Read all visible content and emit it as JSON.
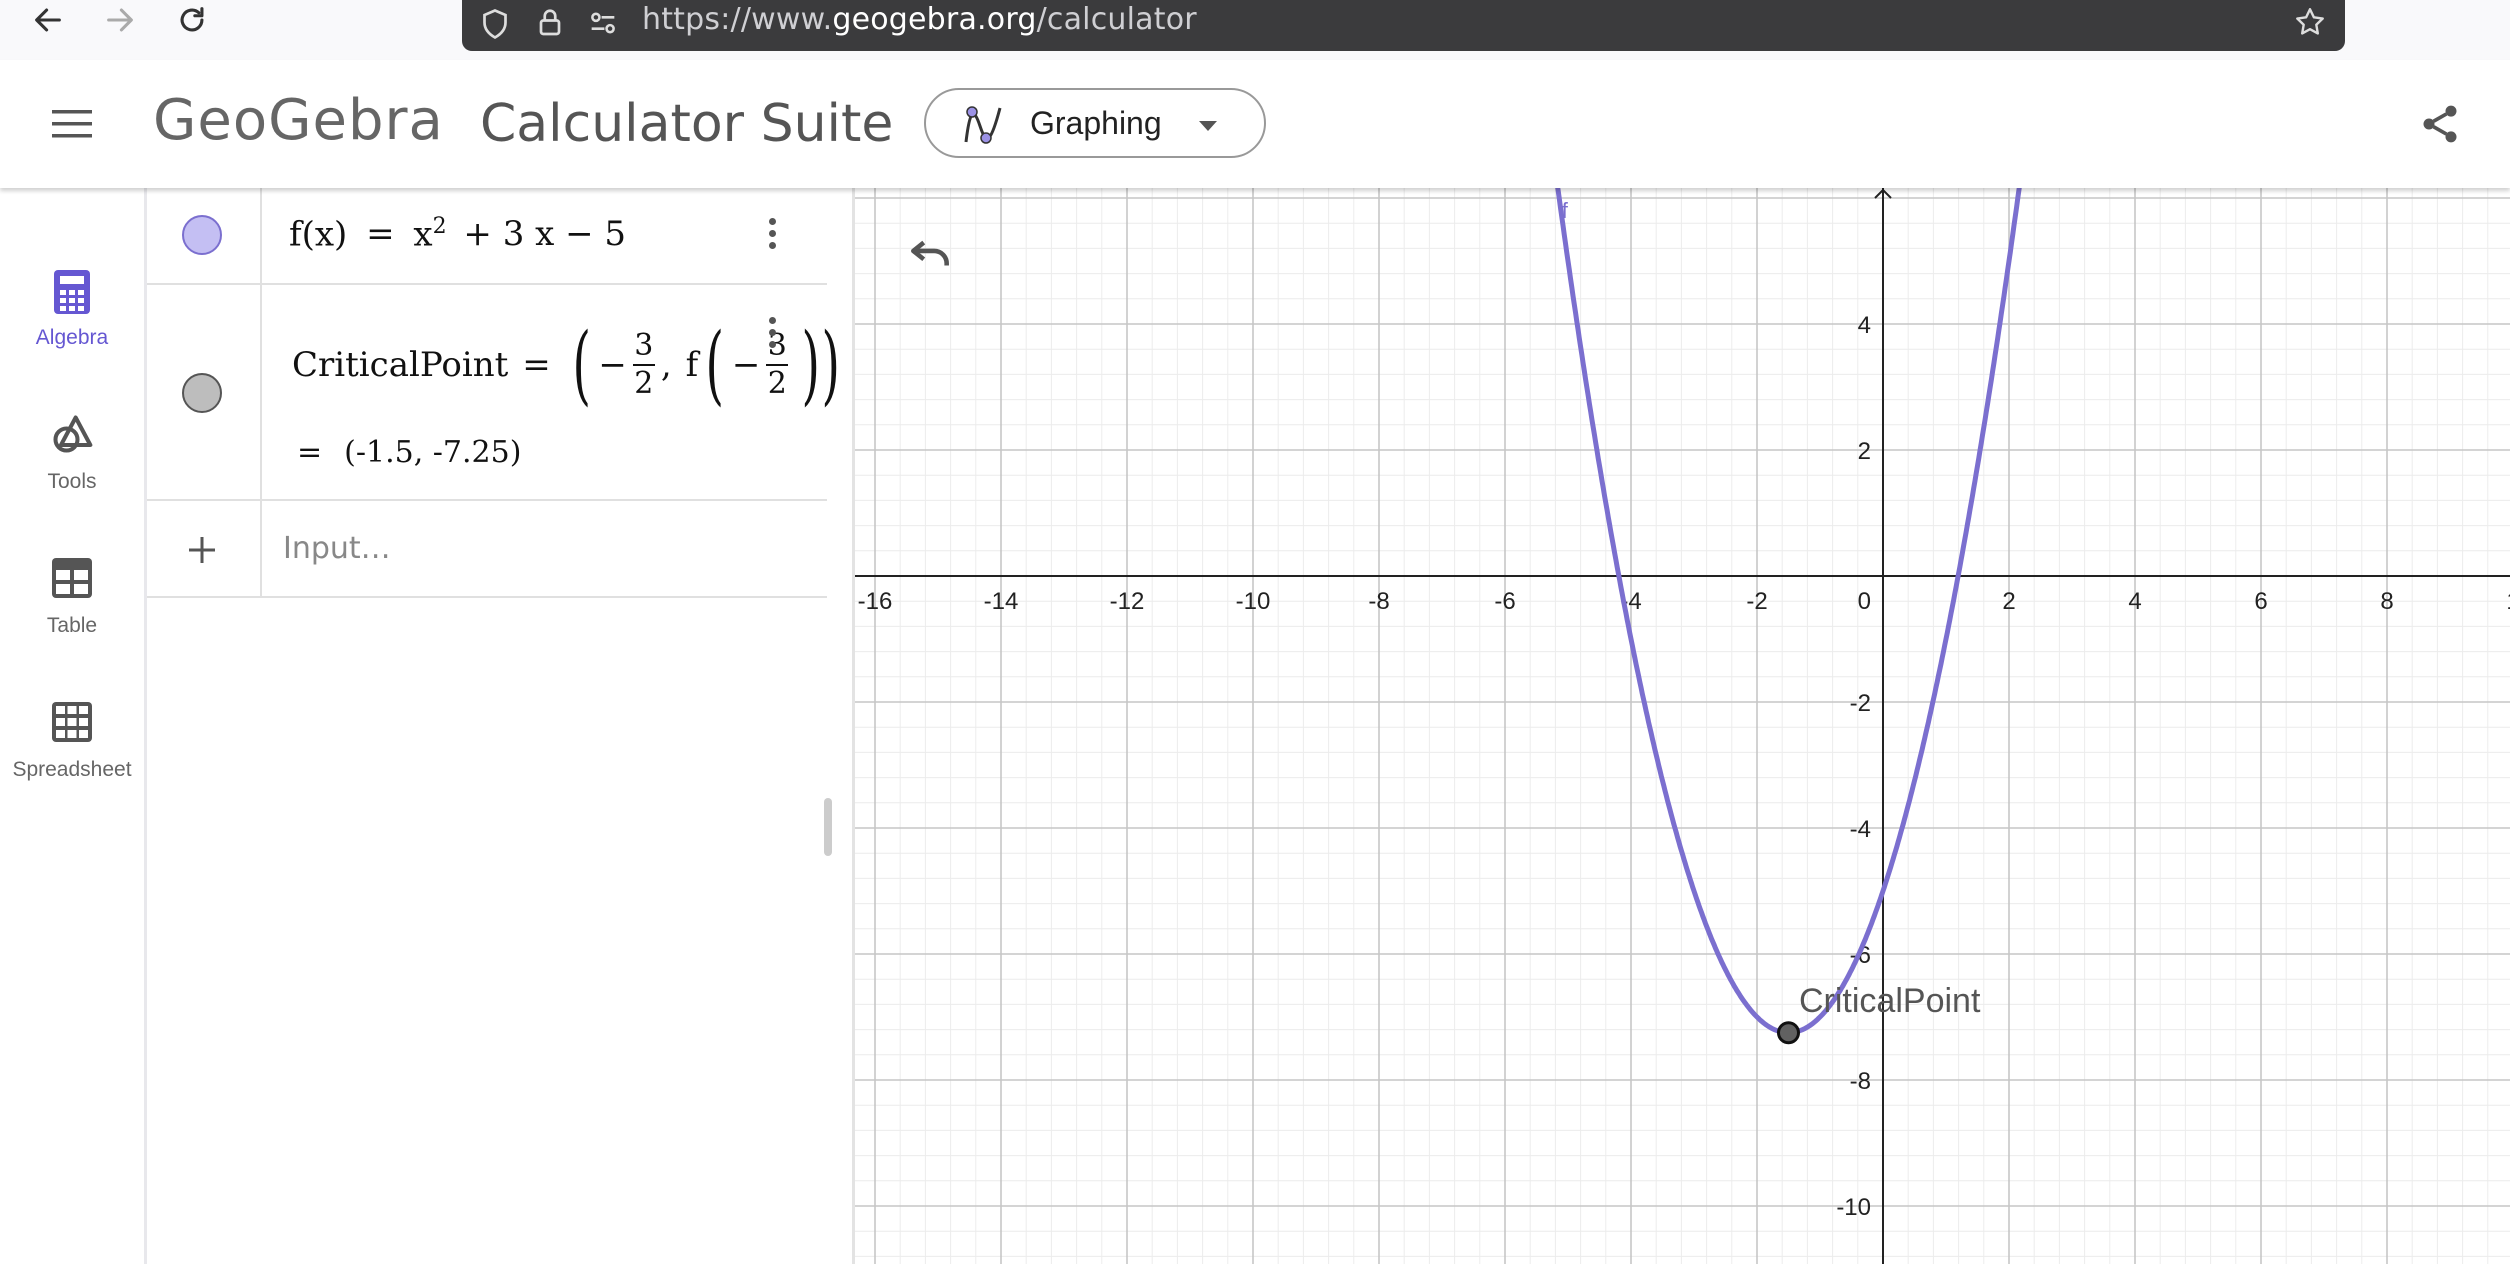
{
  "browser": {
    "url_prefix": "https://www.",
    "url_domain": "geogebra.org",
    "url_path": "/calculator"
  },
  "header": {
    "brand": "GeoGebra",
    "suite_title": "Calculator Suite",
    "app_switcher": "Graphing"
  },
  "rail": {
    "items": [
      {
        "label": "Algebra",
        "active": true
      },
      {
        "label": "Tools",
        "active": false
      },
      {
        "label": "Table",
        "active": false
      },
      {
        "label": "Spreadsheet",
        "active": false
      }
    ]
  },
  "algebra": {
    "function": {
      "name": "f(x)",
      "eq": "=",
      "x": "x",
      "exp": "2",
      "rest": "+ 3 x − 5",
      "color": "#7b6fcf"
    },
    "critical": {
      "name": "CriticalPoint",
      "eq": "=",
      "minus": "−",
      "num": "3",
      "den": "2",
      "comma": ",",
      "f": "f",
      "value_eq": "=",
      "value": "(-1.5, -7.25)"
    },
    "input_placeholder": "Input…"
  },
  "graph": {
    "function_label": "f",
    "point_label": "CriticalPoint",
    "point": [
      -1.5,
      -7.25
    ],
    "x_ticks": [
      "-16",
      "-14",
      "-12",
      "-10",
      "-8",
      "-6",
      "-4",
      "-2",
      "0",
      "2",
      "4",
      "6",
      "8",
      "1"
    ],
    "y_ticks": [
      "4",
      "2",
      "-2",
      "-4",
      "-6",
      "-8",
      "-10"
    ],
    "curve_color": "#7b6fcf"
  },
  "chart_data": {
    "type": "line",
    "series": [
      {
        "name": "f",
        "expression": "x^2 + 3x - 5"
      }
    ],
    "x_range": [
      -16,
      10
    ],
    "y_range": [
      -11,
      6
    ],
    "grid": true,
    "points": [
      {
        "label": "CriticalPoint",
        "x": -1.5,
        "y": -7.25
      }
    ]
  }
}
